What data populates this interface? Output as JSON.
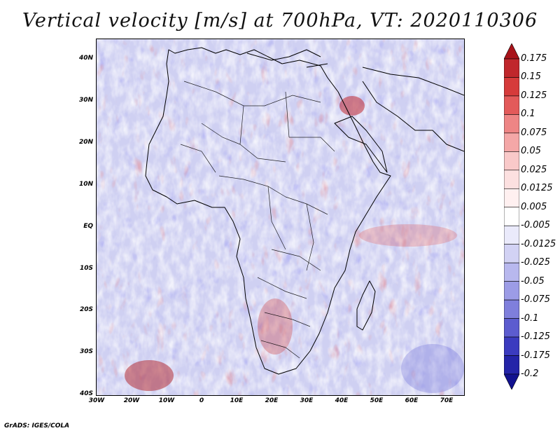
{
  "title": "Vertical velocity [m/s] at 700hPa, VT: 2020110306",
  "credit": "GrADS: IGES/COLA",
  "map": {
    "lat_ticks": [
      "40N",
      "30N",
      "20N",
      "10N",
      "EQ",
      "10S",
      "20S",
      "30S",
      "40S"
    ],
    "lon_ticks": [
      "30W",
      "20W",
      "10W",
      "0",
      "10E",
      "20E",
      "30E",
      "40E",
      "50E",
      "60E",
      "70E"
    ],
    "lat_range": [
      -40,
      45
    ],
    "lon_range": [
      -30,
      75
    ]
  },
  "colorbar": {
    "labels": [
      "0.175",
      "0.15",
      "0.125",
      "0.1",
      "0.075",
      "0.05",
      "0.025",
      "0.0125",
      "0.005",
      "-0.005",
      "-0.0125",
      "-0.025",
      "-0.05",
      "-0.075",
      "-0.1",
      "-0.125",
      "-0.175",
      "-0.2"
    ],
    "colors": [
      "#a8131a",
      "#c0272c",
      "#d63b3b",
      "#e35a5a",
      "#ee8585",
      "#f4a7a7",
      "#f9c9c9",
      "#fce0e0",
      "#fff0f0",
      "#ffffff",
      "#eaeafb",
      "#d2d2f4",
      "#b8b8ee",
      "#9c9ce6",
      "#7f7fdc",
      "#5c5ccf",
      "#3b3bbf",
      "#2424a8",
      "#12128f"
    ]
  }
}
